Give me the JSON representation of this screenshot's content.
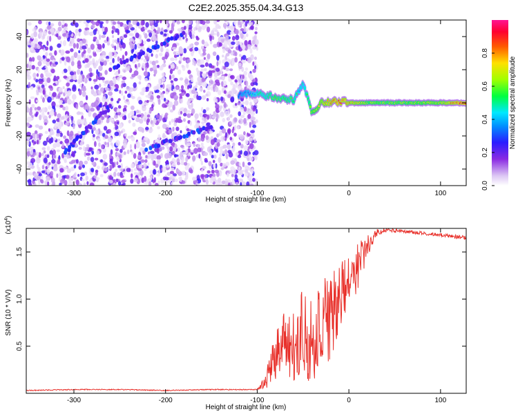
{
  "figure": {
    "title": "C2E2.2025.355.04.34.G13"
  },
  "chart_data": [
    {
      "type": "heatmap",
      "title": "C2E2.2025.355.04.34.G13",
      "xlabel": "Height of straight line (km)",
      "ylabel": "Frequency (Hz)",
      "xlim": [
        -352,
        128
      ],
      "ylim": [
        -50,
        50
      ],
      "x_ticks": [
        -300,
        -200,
        -100,
        0,
        100
      ],
      "y_ticks": [
        -40,
        -20,
        0,
        20,
        40
      ],
      "colorbar": {
        "label": "Normalized spectral amplitude",
        "range": [
          0,
          1
        ],
        "ticks": [
          0.0,
          0.2,
          0.4,
          0.6,
          0.8
        ],
        "tick_labels": [
          "0.0",
          "0.2",
          "0.4",
          "0.6",
          "0.8"
        ],
        "colormap": "rainbow (white-purple-blue-cyan-green-yellow-red-magenta)"
      },
      "features": {
        "noise_region_x": [
          -352,
          -100
        ],
        "noise_background_level": 0.2,
        "chirp_lines": [
          {
            "x": [
              -310,
              -260
            ],
            "y": [
              -30,
              -2
            ]
          },
          {
            "x": [
              -260,
              -180
            ],
            "y": [
              20,
              42
            ]
          },
          {
            "x": [
              -220,
              -150
            ],
            "y": [
              -28,
              -14
            ]
          }
        ],
        "carrier_track": {
          "x": [
            -120,
            -100,
            -80,
            -60,
            -50,
            -40,
            -30,
            -10,
            0,
            20,
            60,
            100,
            128
          ],
          "y": [
            5,
            6,
            3,
            2,
            12,
            -6,
            0,
            1,
            0,
            0,
            0,
            0,
            0
          ],
          "amplitude": [
            0.3,
            0.45,
            0.55,
            0.5,
            0.4,
            0.6,
            0.7,
            0.85,
            0.75,
            0.6,
            0.6,
            0.65,
            0.9
          ]
        }
      }
    },
    {
      "type": "line",
      "title": "",
      "xlabel": "Height of straight line (km)",
      "ylabel": "SNR (10 * V/V)",
      "y_multiplier": "(x10",
      "y_multiplier_exp": "4",
      "y_multiplier_close": ")",
      "xlim": [
        -352,
        128
      ],
      "ylim": [
        0,
        1.75
      ],
      "x_ticks": [
        -300,
        -200,
        -100,
        0,
        100
      ],
      "y_ticks": [
        0.5,
        1.0,
        1.5
      ],
      "y_tick_labels": [
        "0.5",
        "1.0",
        "1.5"
      ],
      "color": "#e8302a",
      "series": [
        {
          "name": "SNR",
          "x": [
            -352,
            -300,
            -250,
            -200,
            -150,
            -100,
            -90,
            -80,
            -70,
            -60,
            -50,
            -40,
            -30,
            -20,
            -10,
            0,
            10,
            20,
            30,
            40,
            60,
            80,
            100,
            128
          ],
          "y": [
            0.03,
            0.04,
            0.04,
            0.03,
            0.04,
            0.04,
            0.15,
            0.4,
            0.6,
            0.45,
            0.7,
            0.5,
            0.85,
            0.8,
            1.05,
            1.2,
            1.35,
            1.55,
            1.7,
            1.73,
            1.72,
            1.7,
            1.68,
            1.65
          ],
          "noise_amplitude": [
            0.005,
            0.005,
            0.005,
            0.005,
            0.005,
            0.005,
            0.1,
            0.25,
            0.35,
            0.4,
            0.45,
            0.45,
            0.5,
            0.5,
            0.35,
            0.3,
            0.25,
            0.12,
            0.04,
            0.02,
            0.02,
            0.02,
            0.02,
            0.02
          ]
        }
      ]
    }
  ]
}
